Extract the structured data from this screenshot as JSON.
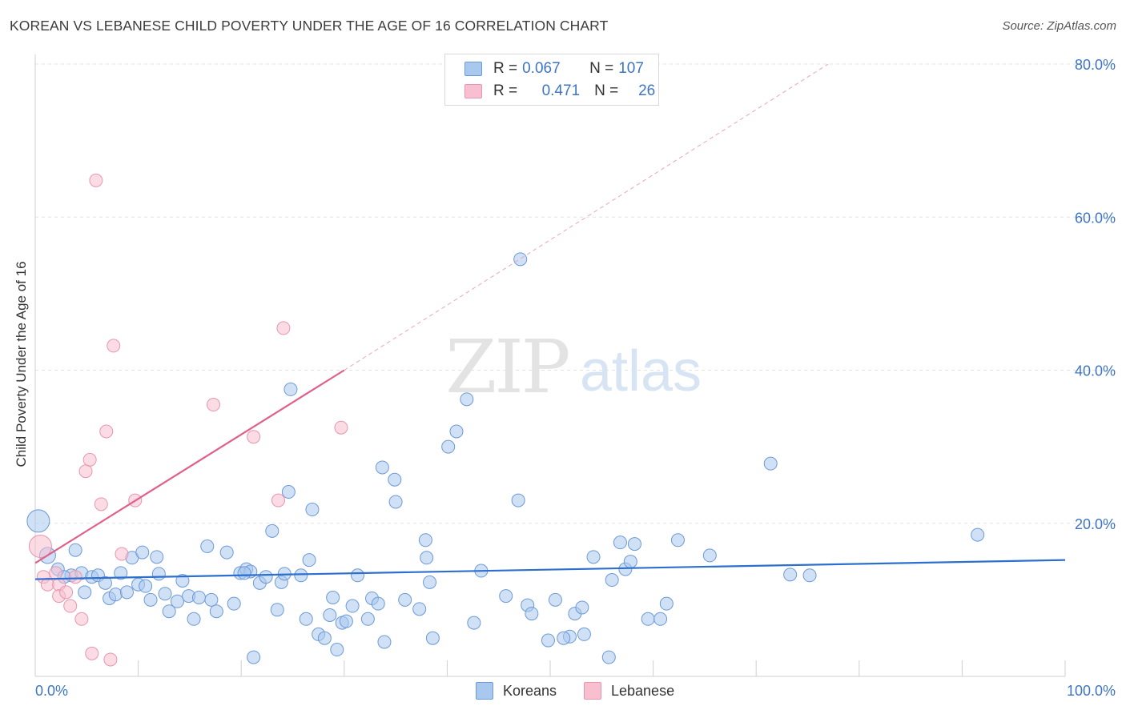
{
  "title": "KOREAN VS LEBANESE CHILD POVERTY UNDER THE AGE OF 16 CORRELATION CHART",
  "source": "Source: ZipAtlas.com",
  "watermark": {
    "zip": "ZIP",
    "atlas": "atlas"
  },
  "legend": {
    "rows": [
      {
        "r_label": "R =",
        "r_value": "0.067",
        "n_label": "N =",
        "n_value": "107"
      },
      {
        "r_label": "R =",
        "r_value": "0.471",
        "n_label": "N =",
        "n_value": "26"
      }
    ]
  },
  "bottom_legend": {
    "koreans": "Koreans",
    "lebanese": "Lebanese"
  },
  "colors": {
    "korean_fill": "#a9c8ee",
    "korean_stroke": "#6c9ad6",
    "korean_line": "#2c6fce",
    "lebanese_fill": "#f7bfd0",
    "lebanese_stroke": "#e895b0",
    "lebanese_line": "#e0608c",
    "tick_text": "#3d74c6",
    "grid": "#e3e3e3"
  },
  "chart_data": {
    "type": "scatter",
    "ylabel": "Child Poverty Under the Age of 16",
    "xlim": [
      0,
      100
    ],
    "ylim": [
      0,
      80
    ],
    "x_tick_labels": [
      "0.0%",
      "100.0%"
    ],
    "y_ticks": [
      20,
      40,
      60,
      80
    ],
    "y_tick_labels": [
      "20.0%",
      "40.0%",
      "60.0%",
      "80.0%"
    ],
    "grid": "horizontal dashed",
    "legend_position": "top-center",
    "series": [
      {
        "name": "Koreans",
        "trend": {
          "x": [
            0,
            100
          ],
          "y": [
            12.7,
            15.2
          ]
        },
        "points": [
          [
            0.3,
            20.3,
            14
          ],
          [
            1.2,
            15.8,
            10
          ],
          [
            2.2,
            14.0,
            8
          ],
          [
            3.5,
            13.2,
            8
          ],
          [
            3.9,
            16.5,
            8
          ],
          [
            2.8,
            13.0,
            8
          ],
          [
            4.5,
            13.5,
            8
          ],
          [
            4.8,
            11.0,
            8
          ],
          [
            5.5,
            13.0,
            8
          ],
          [
            6.1,
            13.2,
            8
          ],
          [
            6.8,
            12.2,
            8
          ],
          [
            7.2,
            10.2,
            8
          ],
          [
            7.8,
            10.7,
            8
          ],
          [
            8.3,
            13.5,
            8
          ],
          [
            8.9,
            11.0,
            8
          ],
          [
            9.4,
            15.5,
            8
          ],
          [
            10.0,
            12.0,
            8
          ],
          [
            10.4,
            16.2,
            8
          ],
          [
            10.7,
            11.8,
            8
          ],
          [
            11.2,
            10.0,
            8
          ],
          [
            11.8,
            15.6,
            8
          ],
          [
            12.0,
            13.4,
            8
          ],
          [
            12.6,
            10.8,
            8
          ],
          [
            13.0,
            8.5,
            8
          ],
          [
            13.8,
            9.8,
            8
          ],
          [
            14.3,
            12.5,
            8
          ],
          [
            14.9,
            10.5,
            8
          ],
          [
            15.9,
            10.3,
            8
          ],
          [
            15.4,
            7.5,
            8
          ],
          [
            16.7,
            17.0,
            8
          ],
          [
            17.1,
            10.0,
            8
          ],
          [
            17.6,
            8.5,
            8
          ],
          [
            18.6,
            16.2,
            8
          ],
          [
            19.3,
            9.5,
            8
          ],
          [
            19.9,
            13.5,
            8
          ],
          [
            20.5,
            14.0,
            8
          ],
          [
            20.9,
            13.7,
            8
          ],
          [
            20.3,
            13.5,
            8
          ],
          [
            21.2,
            2.5,
            8
          ],
          [
            21.8,
            12.2,
            8
          ],
          [
            22.4,
            13.0,
            8
          ],
          [
            23.0,
            19.0,
            8
          ],
          [
            23.5,
            8.7,
            8
          ],
          [
            23.9,
            12.3,
            8
          ],
          [
            24.2,
            13.4,
            8
          ],
          [
            24.6,
            24.1,
            8
          ],
          [
            24.8,
            37.5,
            8
          ],
          [
            25.8,
            13.2,
            8
          ],
          [
            26.3,
            7.5,
            8
          ],
          [
            26.6,
            15.2,
            8
          ],
          [
            26.9,
            21.8,
            8
          ],
          [
            27.5,
            5.5,
            8
          ],
          [
            28.1,
            5.0,
            8
          ],
          [
            28.6,
            8.0,
            8
          ],
          [
            28.9,
            10.3,
            8
          ],
          [
            29.3,
            3.5,
            8
          ],
          [
            29.8,
            7.0,
            8
          ],
          [
            30.2,
            7.2,
            8
          ],
          [
            30.8,
            9.2,
            8
          ],
          [
            31.3,
            13.2,
            8
          ],
          [
            32.3,
            7.5,
            8
          ],
          [
            32.7,
            10.2,
            8
          ],
          [
            33.3,
            9.5,
            8
          ],
          [
            33.7,
            27.3,
            8
          ],
          [
            33.9,
            4.5,
            8
          ],
          [
            34.9,
            25.7,
            8
          ],
          [
            35.0,
            22.8,
            8
          ],
          [
            35.9,
            10.0,
            8
          ],
          [
            37.3,
            8.8,
            8
          ],
          [
            37.9,
            17.8,
            8
          ],
          [
            38.0,
            15.5,
            8
          ],
          [
            38.3,
            12.3,
            8
          ],
          [
            38.6,
            5.0,
            8
          ],
          [
            40.1,
            30.0,
            8
          ],
          [
            40.9,
            32.0,
            8
          ],
          [
            41.9,
            36.2,
            8
          ],
          [
            42.6,
            7.0,
            8
          ],
          [
            43.3,
            13.8,
            8
          ],
          [
            45.7,
            10.5,
            8
          ],
          [
            46.9,
            23.0,
            8
          ],
          [
            47.1,
            54.5,
            8
          ],
          [
            47.8,
            9.3,
            8
          ],
          [
            48.2,
            8.2,
            8
          ],
          [
            49.8,
            4.7,
            8
          ],
          [
            50.5,
            10.0,
            8
          ],
          [
            51.9,
            5.2,
            8
          ],
          [
            51.3,
            5.0,
            8
          ],
          [
            52.4,
            8.2,
            8
          ],
          [
            53.1,
            9.0,
            8
          ],
          [
            53.3,
            5.5,
            8
          ],
          [
            54.2,
            15.6,
            8
          ],
          [
            55.7,
            2.5,
            8
          ],
          [
            56.0,
            12.6,
            8
          ],
          [
            56.8,
            17.5,
            8
          ],
          [
            57.3,
            14.0,
            8
          ],
          [
            57.8,
            15.0,
            8
          ],
          [
            58.2,
            17.3,
            8
          ],
          [
            59.5,
            7.5,
            8
          ],
          [
            60.7,
            7.5,
            8
          ],
          [
            61.3,
            9.5,
            8
          ],
          [
            62.4,
            17.8,
            8
          ],
          [
            65.5,
            15.8,
            8
          ],
          [
            71.4,
            27.8,
            8
          ],
          [
            73.3,
            13.3,
            8
          ],
          [
            75.2,
            13.2,
            8
          ],
          [
            91.5,
            18.5,
            8
          ]
        ]
      },
      {
        "name": "Lebanese",
        "trend": {
          "x": [
            0,
            30
          ],
          "y": [
            14.8,
            40.0
          ],
          "dashed_extension": {
            "x": [
              30,
              77
            ],
            "y": [
              40.0,
              80.0
            ]
          }
        },
        "points": [
          [
            0.5,
            17.0,
            14
          ],
          [
            0.8,
            13.0,
            8
          ],
          [
            1.2,
            12.0,
            8
          ],
          [
            2.0,
            13.5,
            8
          ],
          [
            2.3,
            12.0,
            8
          ],
          [
            2.3,
            10.5,
            8
          ],
          [
            3.0,
            11.0,
            8
          ],
          [
            3.4,
            9.2,
            8
          ],
          [
            3.9,
            13.0,
            8
          ],
          [
            4.5,
            7.5,
            8
          ],
          [
            4.9,
            26.8,
            8
          ],
          [
            5.3,
            28.3,
            8
          ],
          [
            5.5,
            3.0,
            8
          ],
          [
            5.9,
            64.8,
            8
          ],
          [
            6.4,
            22.5,
            8
          ],
          [
            6.9,
            32.0,
            8
          ],
          [
            7.3,
            2.2,
            8
          ],
          [
            7.6,
            43.2,
            8
          ],
          [
            8.4,
            16.0,
            8
          ],
          [
            9.7,
            23.0,
            8
          ],
          [
            17.3,
            35.5,
            8
          ],
          [
            21.2,
            31.3,
            8
          ],
          [
            23.6,
            23.0,
            8
          ],
          [
            24.1,
            45.5,
            8
          ],
          [
            29.7,
            32.5,
            8
          ]
        ]
      }
    ]
  }
}
